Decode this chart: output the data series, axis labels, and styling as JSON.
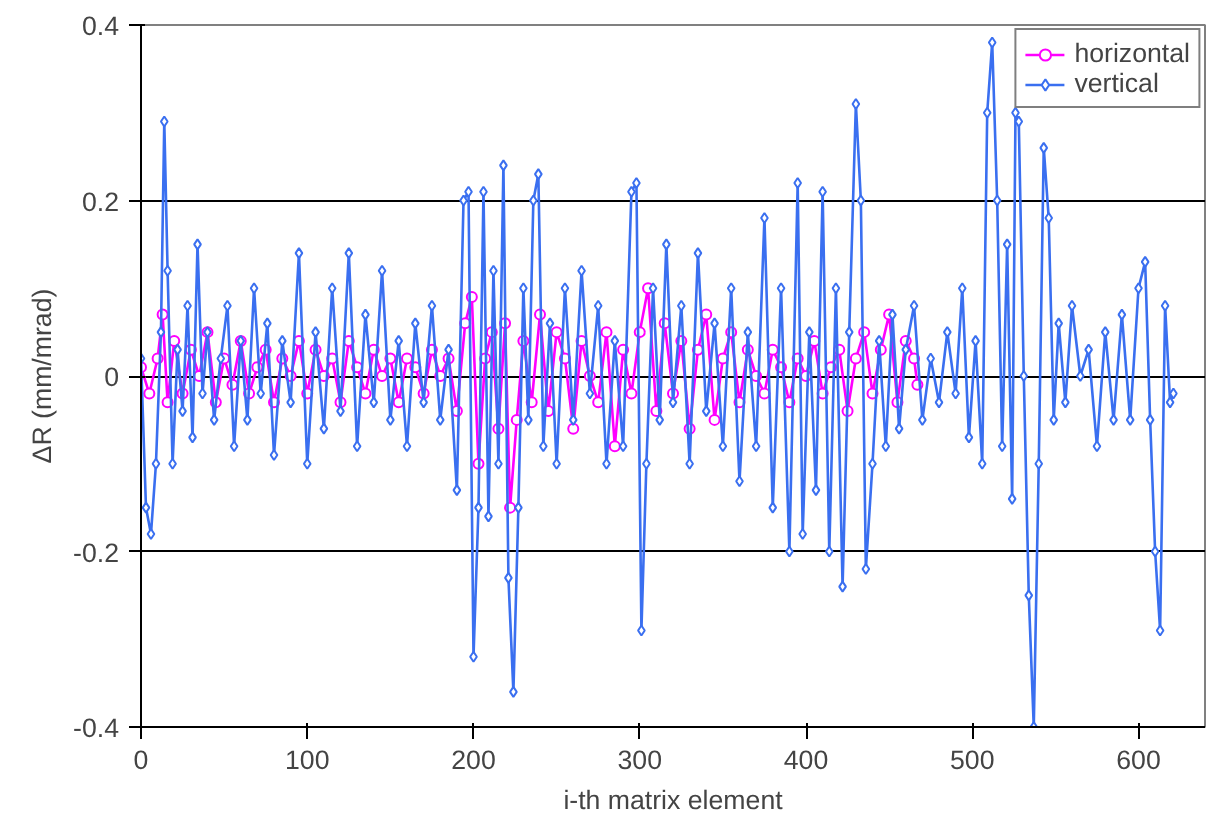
{
  "chart_data": {
    "type": "line",
    "xlabel": "i-th matrix element",
    "ylabel": "ΔR (mm/mrad)",
    "xlim": [
      0,
      640
    ],
    "xticks": [
      0,
      100,
      200,
      300,
      400,
      500,
      600
    ],
    "ylim": [
      -0.4,
      0.4
    ],
    "yticks": [
      -0.4,
      -0.2,
      0,
      0.2,
      0.4
    ],
    "grid": "y",
    "legend": "top right",
    "series": [
      {
        "name": "horizontal",
        "color": "#ff00ff",
        "marker": "circle",
        "x": [
          0,
          5,
          10,
          13,
          16,
          20,
          25,
          30,
          35,
          40,
          45,
          50,
          55,
          60,
          65,
          70,
          75,
          80,
          85,
          90,
          95,
          100,
          105,
          110,
          115,
          120,
          125,
          130,
          135,
          140,
          145,
          150,
          155,
          160,
          165,
          170,
          175,
          180,
          185,
          190,
          195,
          199,
          203,
          207,
          211,
          215,
          219,
          222,
          226,
          230,
          235,
          240,
          245,
          250,
          255,
          260,
          265,
          270,
          275,
          280,
          285,
          290,
          295,
          300,
          305,
          310,
          315,
          320,
          325,
          330,
          335,
          340,
          345,
          350,
          355,
          360,
          365,
          370,
          375,
          380,
          385,
          390,
          395,
          400,
          405,
          410,
          415,
          420,
          425,
          430,
          435,
          440,
          445,
          450,
          455,
          460,
          465,
          467
        ],
        "values": [
          0.01,
          -0.02,
          0.02,
          0.07,
          -0.03,
          0.04,
          -0.02,
          0.03,
          0.0,
          0.05,
          -0.03,
          0.02,
          -0.01,
          0.04,
          -0.02,
          0.01,
          0.03,
          -0.03,
          0.02,
          0.0,
          0.04,
          -0.02,
          0.03,
          0.0,
          0.02,
          -0.03,
          0.04,
          0.01,
          -0.02,
          0.03,
          0.0,
          0.02,
          -0.03,
          0.02,
          0.01,
          -0.02,
          0.03,
          0.0,
          0.02,
          -0.04,
          0.06,
          0.09,
          -0.1,
          0.02,
          0.05,
          -0.06,
          0.06,
          -0.15,
          -0.05,
          0.04,
          -0.03,
          0.07,
          -0.04,
          0.05,
          0.02,
          -0.06,
          0.04,
          0.0,
          -0.03,
          0.05,
          -0.08,
          0.03,
          -0.02,
          0.05,
          0.1,
          -0.04,
          0.06,
          -0.02,
          0.04,
          -0.06,
          0.03,
          0.07,
          -0.05,
          0.02,
          0.05,
          -0.03,
          0.03,
          0.0,
          -0.02,
          0.03,
          0.01,
          -0.03,
          0.02,
          0.0,
          0.04,
          -0.02,
          0.01,
          0.03,
          -0.04,
          0.02,
          0.05,
          -0.02,
          0.03,
          0.07,
          -0.03,
          0.04,
          0.02,
          -0.01
        ]
      },
      {
        "name": "vertical",
        "color": "#3a6ff0",
        "marker": "diamond",
        "x": [
          0,
          3,
          6,
          9,
          12,
          14,
          16,
          19,
          22,
          25,
          28,
          31,
          34,
          37,
          40,
          44,
          48,
          52,
          56,
          60,
          64,
          68,
          72,
          76,
          80,
          85,
          90,
          95,
          100,
          105,
          110,
          115,
          120,
          125,
          130,
          135,
          140,
          145,
          150,
          155,
          160,
          165,
          170,
          175,
          180,
          185,
          190,
          194,
          197,
          200,
          203,
          206,
          209,
          212,
          215,
          218,
          221,
          224,
          227,
          230,
          233,
          236,
          239,
          242,
          246,
          250,
          255,
          260,
          265,
          270,
          275,
          280,
          285,
          290,
          295,
          298,
          301,
          304,
          308,
          312,
          316,
          320,
          325,
          330,
          335,
          340,
          345,
          350,
          355,
          360,
          365,
          370,
          375,
          380,
          385,
          390,
          395,
          398,
          402,
          406,
          410,
          414,
          418,
          422,
          426,
          430,
          433,
          436,
          440,
          444,
          448,
          452,
          456,
          460,
          465,
          470,
          475,
          480,
          485,
          490,
          494,
          498,
          502,
          506,
          509,
          512,
          515,
          518,
          521,
          524,
          526,
          528,
          531,
          534,
          537,
          540,
          543,
          546,
          549,
          552,
          556,
          560,
          565,
          570,
          575,
          580,
          585,
          590,
          595,
          600,
          604,
          607,
          610,
          613,
          616,
          619,
          621
        ],
        "values": [
          0.02,
          -0.15,
          -0.18,
          -0.1,
          0.05,
          0.29,
          0.12,
          -0.1,
          0.03,
          -0.04,
          0.08,
          -0.07,
          0.15,
          -0.02,
          0.05,
          -0.05,
          0.02,
          0.08,
          -0.08,
          0.04,
          -0.05,
          0.1,
          -0.02,
          0.06,
          -0.09,
          0.04,
          -0.03,
          0.14,
          -0.1,
          0.05,
          -0.06,
          0.1,
          -0.04,
          0.14,
          -0.08,
          0.07,
          -0.03,
          0.12,
          -0.05,
          0.04,
          -0.08,
          0.06,
          -0.03,
          0.08,
          -0.05,
          0.03,
          -0.13,
          0.2,
          0.21,
          -0.32,
          -0.15,
          0.21,
          -0.16,
          0.12,
          -0.1,
          0.24,
          -0.23,
          -0.36,
          -0.15,
          0.1,
          -0.05,
          0.2,
          0.23,
          -0.08,
          0.06,
          -0.1,
          0.1,
          -0.05,
          0.12,
          -0.02,
          0.08,
          -0.1,
          0.04,
          -0.08,
          0.21,
          0.22,
          -0.29,
          -0.1,
          0.1,
          -0.05,
          0.15,
          -0.03,
          0.08,
          -0.1,
          0.14,
          -0.04,
          0.06,
          -0.08,
          0.1,
          -0.12,
          0.05,
          -0.08,
          0.18,
          -0.15,
          0.1,
          -0.2,
          0.22,
          -0.18,
          0.05,
          -0.13,
          0.21,
          -0.2,
          0.1,
          -0.24,
          0.05,
          0.31,
          0.2,
          -0.22,
          -0.1,
          0.04,
          -0.08,
          0.07,
          -0.06,
          0.03,
          0.08,
          -0.05,
          0.02,
          -0.03,
          0.05,
          -0.02,
          0.1,
          -0.07,
          0.04,
          -0.1,
          0.3,
          0.38,
          0.2,
          -0.08,
          0.15,
          -0.14,
          0.3,
          0.29,
          0.0,
          -0.25,
          -0.4,
          -0.1,
          0.26,
          0.18,
          -0.05,
          0.06,
          -0.03,
          0.08,
          0.0,
          0.03,
          -0.08,
          0.05,
          -0.05,
          0.07,
          -0.05,
          0.1,
          0.13,
          -0.05,
          -0.2,
          -0.29,
          0.08,
          -0.03,
          -0.02
        ]
      }
    ]
  }
}
